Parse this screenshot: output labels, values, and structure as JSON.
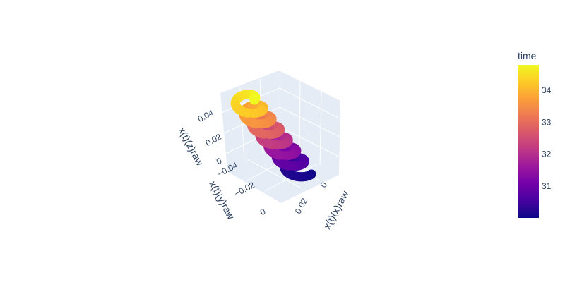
{
  "chart_data": {
    "type": "scatter3d",
    "title": "",
    "axes": {
      "x": {
        "title": "x(t)(x)raw",
        "ticks": [
          "0",
          "0.02"
        ]
      },
      "y": {
        "title": "x(t)(y)raw",
        "ticks": [
          "0",
          "−0.02",
          "−0.04"
        ]
      },
      "z": {
        "title": "x(t)(z)raw",
        "ticks": [
          "0",
          "0.02",
          "0.04"
        ]
      }
    },
    "colorbar": {
      "title": "time",
      "range": [
        30.0,
        34.8
      ],
      "ticks": [
        "31",
        "32",
        "33",
        "34"
      ],
      "tick_values": [
        31,
        32,
        33,
        34
      ],
      "colorscale": [
        "#0d0887",
        "#46039f",
        "#7201a8",
        "#9c179e",
        "#bd3786",
        "#d8576b",
        "#ed7953",
        "#fb9f3a",
        "#fdca26",
        "#f0f921"
      ]
    },
    "series": [
      {
        "description": "helical trajectory colored by time",
        "time_range": [
          30.0,
          34.8
        ],
        "turns": 7
      }
    ],
    "grid": true,
    "background_color": "#e5ecf6"
  }
}
